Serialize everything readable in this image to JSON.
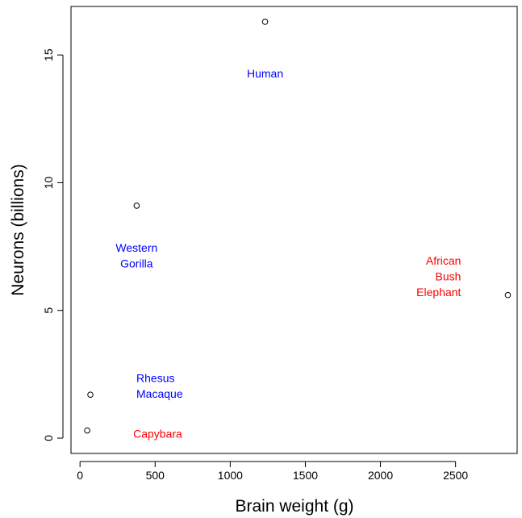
{
  "chart_data": {
    "type": "scatter",
    "title": "",
    "xlabel": "Brain weight (g)",
    "ylabel": "Neurons (billions)",
    "xlim": [
      -60,
      2910
    ],
    "ylim": [
      -0.6,
      16.9
    ],
    "xticks": [
      0,
      500,
      1000,
      1500,
      2000,
      2500
    ],
    "yticks": [
      0,
      5,
      10,
      15
    ],
    "grid": false,
    "legend": "none",
    "points": [
      {
        "x": 1232,
        "y": 16.3,
        "label": [
          "Human"
        ],
        "color": "#0000ff"
      },
      {
        "x": 377,
        "y": 9.1,
        "label": [
          "Western",
          "Gorilla"
        ],
        "color": "#0000ff"
      },
      {
        "x": 2848,
        "y": 5.6,
        "label": [
          "African",
          "Bush",
          "Elephant"
        ],
        "color": "#ff0000"
      },
      {
        "x": 69,
        "y": 1.7,
        "label": [
          "Rhesus",
          "Macaque"
        ],
        "color": "#0000ff"
      },
      {
        "x": 48,
        "y": 0.3,
        "label": [
          "Capybara"
        ],
        "color": "#ff0000"
      }
    ]
  }
}
